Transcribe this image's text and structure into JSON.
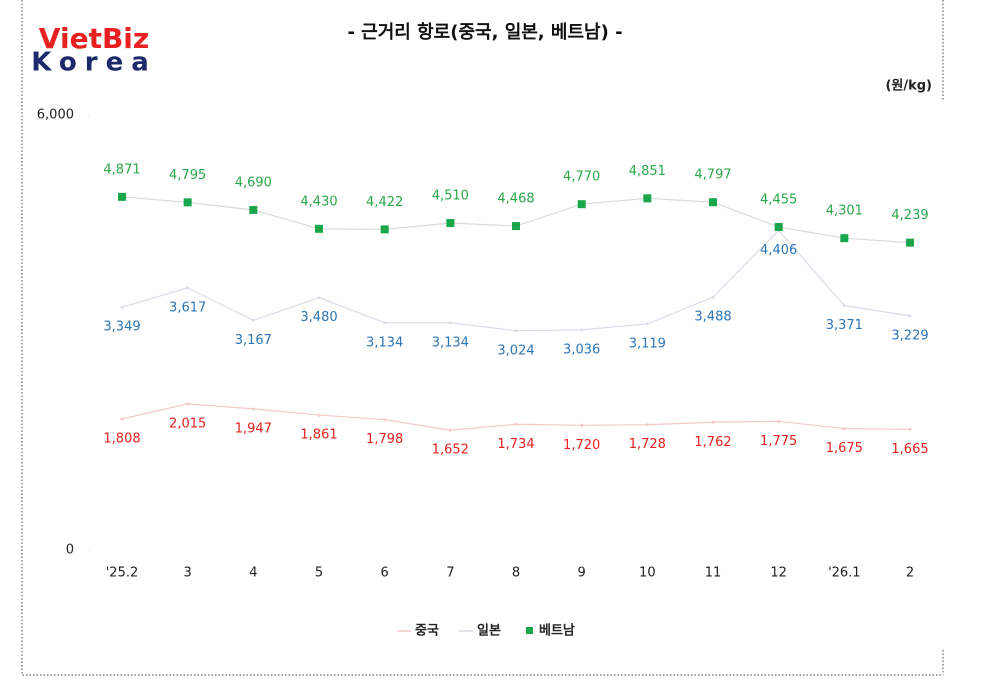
{
  "logo": {
    "top": "VietBiz",
    "bottom": "Korea"
  },
  "chart_data": {
    "type": "line",
    "title": "- 근거리 항로(중국, 일본, 베트남) -",
    "unit": "(원/kg)",
    "categories": [
      "'25.2",
      "3",
      "4",
      "5",
      "6",
      "7",
      "8",
      "9",
      "10",
      "11",
      "12",
      "'26.1",
      "2"
    ],
    "ylim": [
      0,
      6000
    ],
    "yticks": [
      0,
      {
        "value": 6000,
        "label": "6,000"
      }
    ],
    "series": [
      {
        "name": "중국",
        "color": "#f3c9c9",
        "label_color": "#e8201f",
        "marker": false,
        "values": [
          1808,
          2015,
          1947,
          1861,
          1798,
          1652,
          1734,
          1720,
          1728,
          1762,
          1775,
          1675,
          1665
        ],
        "value_labels": [
          "1,808",
          "2,015",
          "1,947",
          "1,861",
          "1,798",
          "1,652",
          "1,734",
          "1,720",
          "1,728",
          "1,762",
          "1,775",
          "1,675",
          "1,665"
        ]
      },
      {
        "name": "일본",
        "color": "#d8dce6",
        "label_color": "#2e75b6",
        "marker": false,
        "values": [
          3349,
          3617,
          3167,
          3480,
          3134,
          3134,
          3024,
          3036,
          3119,
          3488,
          4406,
          3371,
          3229
        ],
        "value_labels": [
          "3,349",
          "3,617",
          "3,167",
          "3,480",
          "3,134",
          "3,134",
          "3,024",
          "3,036",
          "3,119",
          "3,488",
          "4,406",
          "3,371",
          "3,229"
        ]
      },
      {
        "name": "베트남",
        "color": "#1aa64a",
        "label_color": "#2aa84a",
        "marker": true,
        "values": [
          4871,
          4795,
          4690,
          4430,
          4422,
          4510,
          4468,
          4770,
          4851,
          4797,
          4455,
          4301,
          4239
        ],
        "value_labels": [
          "4,871",
          "4,795",
          "4,690",
          "4,430",
          "4,422",
          "4,510",
          "4,468",
          "4,770",
          "4,851",
          "4,797",
          "4,455",
          "4,301",
          "4,239"
        ]
      }
    ]
  }
}
